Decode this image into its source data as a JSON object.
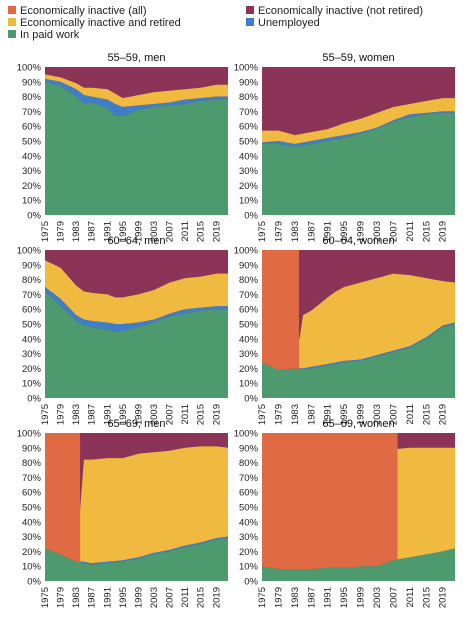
{
  "legend": [
    {
      "label": "Economically inactive (all)",
      "color": "#e06a44"
    },
    {
      "label": "Economically inactive (not retired)",
      "color": "#8b3458"
    },
    {
      "label": "Economically inactive and retired",
      "color": "#f0b93f"
    },
    {
      "label": "Unemployed",
      "color": "#3f7ec6"
    },
    {
      "label": "In paid work",
      "color": "#4d9a6e"
    }
  ],
  "chart_data": [
    {
      "type": "area",
      "title": "55–59, men",
      "years": [
        1975,
        1979,
        1983,
        1985,
        1987,
        1991,
        1993,
        1995,
        1999,
        2003,
        2007,
        2011,
        2015,
        2019,
        2022
      ],
      "ylim": [
        0,
        100
      ],
      "y_ticks": [
        "0%",
        "10%",
        "20%",
        "30%",
        "40%",
        "50%",
        "60%",
        "70%",
        "80%",
        "90%",
        "100%"
      ],
      "x_ticks": [
        "1975",
        "1979",
        "1983",
        "1987",
        "1991",
        "1995",
        "1999",
        "2003",
        "2007",
        "2011",
        "2015",
        "2019"
      ],
      "inactive_all_until": null,
      "paid": [
        90,
        87,
        80,
        75,
        76,
        72,
        67,
        67,
        71,
        73,
        74,
        75,
        77,
        78,
        78
      ],
      "unemployed": [
        2,
        3,
        5,
        6,
        4,
        6,
        8,
        6,
        3,
        2,
        2,
        3,
        2,
        2,
        2
      ],
      "retired": [
        3,
        3,
        4,
        5,
        6,
        7,
        7,
        6,
        7,
        8,
        8,
        7,
        7,
        8,
        8
      ]
    },
    {
      "type": "area",
      "title": "55–59, women",
      "years": [
        1975,
        1979,
        1983,
        1987,
        1991,
        1995,
        1999,
        2003,
        2007,
        2011,
        2015,
        2019,
        2022
      ],
      "ylim": [
        0,
        100
      ],
      "y_ticks": [
        "0%",
        "10%",
        "20%",
        "30%",
        "40%",
        "50%",
        "60%",
        "70%",
        "80%",
        "90%",
        "100%"
      ],
      "x_ticks": [
        "1975",
        "1979",
        "1983",
        "1987",
        "1991",
        "1995",
        "1999",
        "2003",
        "2007",
        "2011",
        "2015",
        "2019"
      ],
      "inactive_all_until": null,
      "paid": [
        48,
        48,
        46,
        48,
        50,
        52,
        55,
        58,
        63,
        66,
        68,
        69,
        69
      ],
      "unemployed": [
        1,
        2,
        2,
        2,
        2,
        2,
        1,
        1,
        1,
        2,
        1,
        1,
        1
      ],
      "retired": [
        8,
        7,
        6,
        6,
        6,
        8,
        9,
        10,
        9,
        7,
        8,
        9,
        9
      ]
    },
    {
      "type": "area",
      "title": "60–64, men",
      "years": [
        1975,
        1979,
        1983,
        1985,
        1987,
        1991,
        1993,
        1995,
        1999,
        2003,
        2007,
        2011,
        2015,
        2019,
        2022
      ],
      "ylim": [
        0,
        100
      ],
      "y_ticks": [
        "0%",
        "10%",
        "20%",
        "30%",
        "40%",
        "50%",
        "60%",
        "70%",
        "80%",
        "90%",
        "100%"
      ],
      "x_ticks": [
        "1975",
        "1979",
        "1983",
        "1987",
        "1991",
        "1995",
        "1999",
        "2003",
        "2007",
        "2011",
        "2015",
        "2019"
      ],
      "inactive_all_until": null,
      "paid": [
        72,
        62,
        52,
        49,
        48,
        46,
        45,
        45,
        48,
        51,
        55,
        57,
        59,
        60,
        60
      ],
      "unemployed": [
        3,
        5,
        4,
        4,
        4,
        5,
        5,
        5,
        3,
        2,
        2,
        3,
        2,
        2,
        2
      ],
      "retired": [
        18,
        21,
        20,
        19,
        19,
        19,
        18,
        18,
        19,
        20,
        21,
        21,
        21,
        22,
        22
      ]
    },
    {
      "type": "area",
      "title": "60–64, women",
      "years": [
        1975,
        1979,
        1983,
        1985,
        1987,
        1991,
        1993,
        1995,
        1999,
        2003,
        2007,
        2011,
        2015,
        2019,
        2022
      ],
      "ylim": [
        0,
        100
      ],
      "y_ticks": [
        "0%",
        "10%",
        "20%",
        "30%",
        "40%",
        "50%",
        "60%",
        "70%",
        "80%",
        "90%",
        "100%"
      ],
      "x_ticks": [
        "1975",
        "1979",
        "1983",
        "1987",
        "1991",
        "1995",
        "1999",
        "2003",
        "2007",
        "2011",
        "2015",
        "2019"
      ],
      "inactive_all_until": 1984,
      "paid": [
        24,
        19,
        20,
        19,
        20,
        22,
        23,
        24,
        25,
        28,
        31,
        34,
        40,
        48,
        50
      ],
      "unemployed": [
        0,
        0,
        0,
        1,
        1,
        1,
        1,
        1,
        1,
        1,
        1,
        1,
        1,
        1,
        1
      ],
      "retired": [
        0,
        0,
        0,
        36,
        38,
        45,
        48,
        50,
        52,
        52,
        52,
        48,
        40,
        30,
        27
      ]
    },
    {
      "type": "area",
      "title": "65–69, men",
      "years": [
        1975,
        1979,
        1983,
        1985,
        1987,
        1991,
        1995,
        1999,
        2003,
        2007,
        2011,
        2015,
        2019,
        2022
      ],
      "ylim": [
        0,
        100
      ],
      "y_ticks": [
        "0%",
        "10%",
        "20%",
        "30%",
        "40%",
        "50%",
        "60%",
        "70%",
        "80%",
        "90%",
        "100%"
      ],
      "x_ticks": [
        "1975",
        "1979",
        "1983",
        "1987",
        "1991",
        "1995",
        "1999",
        "2003",
        "2007",
        "2011",
        "2015",
        "2019"
      ],
      "inactive_all_until": 1984,
      "paid": [
        22,
        18,
        13,
        12,
        11,
        12,
        13,
        15,
        18,
        20,
        23,
        25,
        28,
        29
      ],
      "unemployed": [
        0,
        0,
        0,
        1,
        1,
        1,
        1,
        1,
        1,
        1,
        1,
        1,
        1,
        1
      ],
      "retired": [
        0,
        0,
        0,
        69,
        70,
        70,
        69,
        70,
        68,
        67,
        66,
        65,
        62,
        60
      ]
    },
    {
      "type": "area",
      "title": "65–69, women",
      "years": [
        1975,
        1979,
        1983,
        1987,
        1991,
        1995,
        1999,
        2003,
        2007,
        2011,
        2015,
        2019,
        2022
      ],
      "ylim": [
        0,
        100
      ],
      "y_ticks": [
        "0%",
        "10%",
        "20%",
        "30%",
        "40%",
        "50%",
        "60%",
        "70%",
        "80%",
        "90%",
        "100%"
      ],
      "x_ticks": [
        "1975",
        "1979",
        "1983",
        "1987",
        "1991",
        "1995",
        "1999",
        "2003",
        "2007",
        "2011",
        "2015",
        "2019"
      ],
      "inactive_all_until": 2008,
      "paid": [
        10,
        8,
        8,
        8,
        9,
        9,
        10,
        10,
        14,
        16,
        18,
        20,
        22
      ],
      "unemployed": [
        0,
        0,
        0,
        0,
        0,
        0,
        0,
        0,
        0,
        0,
        0,
        0,
        0
      ],
      "retired": [
        0,
        0,
        0,
        0,
        0,
        0,
        0,
        0,
        75,
        74,
        72,
        70,
        68
      ]
    }
  ]
}
